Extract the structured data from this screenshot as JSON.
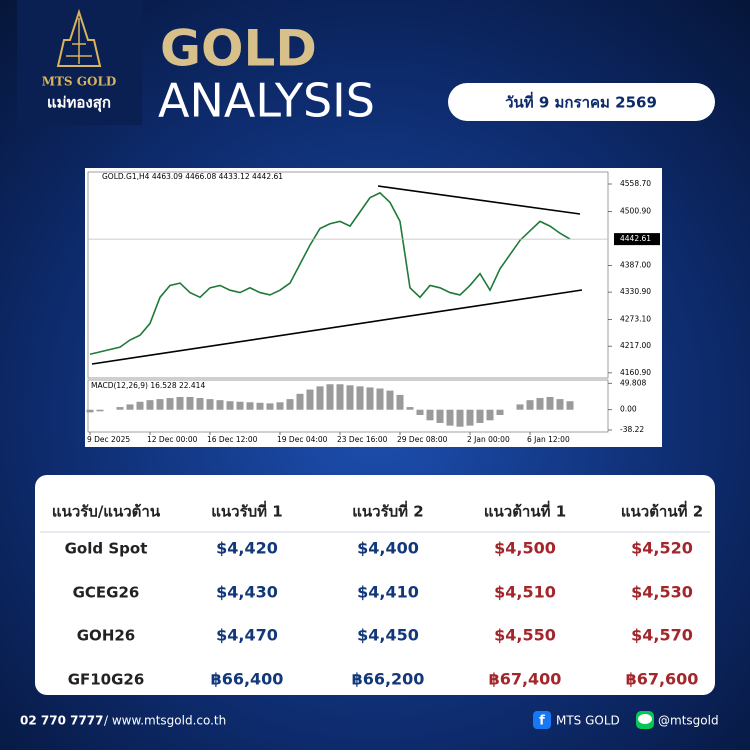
{
  "logo": {
    "brand": "MTS GOLD",
    "thai": "แม่ทองสุก"
  },
  "header": {
    "title_1": "GOLD",
    "title_2": "ANALYSIS",
    "date": "วันที่ 9 มกราคม 2569"
  },
  "chart_data": [
    {
      "type": "line",
      "title": "GOLD.G1,H4  4463.09 4466.08 4433.12 4442.61",
      "color": "#1f7a3a",
      "categories": [
        "9 Dec 2025",
        null,
        null,
        null,
        null,
        null,
        "12 Dec 00:00",
        null,
        null,
        null,
        null,
        null,
        "16 Dec 12:00",
        null,
        null,
        null,
        null,
        null,
        null,
        "19 Dec 04:00",
        null,
        null,
        null,
        null,
        null,
        "23 Dec 16:00",
        null,
        null,
        null,
        null,
        null,
        "29 Dec 08:00",
        null,
        null,
        null,
        null,
        null,
        null,
        "2 Jan 00:00",
        null,
        null,
        null,
        null,
        null,
        "6 Jan 12:00",
        null,
        null,
        null,
        null
      ],
      "values": [
        4200,
        4205,
        4210,
        4215,
        4230,
        4240,
        4265,
        4320,
        4345,
        4350,
        4330,
        4320,
        4340,
        4345,
        4335,
        4330,
        4340,
        4330,
        4325,
        4335,
        4350,
        4390,
        4430,
        4465,
        4475,
        4480,
        4470,
        4500,
        4530,
        4540,
        4520,
        4480,
        4340,
        4320,
        4345,
        4340,
        4330,
        4325,
        4345,
        4370,
        4335,
        4380,
        4410,
        4440,
        4460,
        4480,
        4470,
        4455,
        4442.61
      ],
      "ylim": [
        4150,
        4584
      ],
      "yticks": [
        {
          "value": 4558.7,
          "label": "4558.70"
        },
        {
          "value": 4500.9,
          "label": "4500.90"
        },
        {
          "value": 4387,
          "label": "4387.00"
        },
        {
          "value": 4330.9,
          "label": "4330.90"
        },
        {
          "value": 4273.1,
          "label": "4273.10"
        },
        {
          "value": 4217,
          "label": "4217.00"
        },
        {
          "value": 4160.9,
          "label": "4160.90"
        }
      ],
      "current_price": {
        "value": 4442.61,
        "label": "4442.61"
      }
    },
    {
      "type": "bar",
      "title": "MACD(12,26,9) 16.528 22.414",
      "color": "#9a9a9a",
      "values": [
        -5,
        -3,
        0,
        5,
        10,
        15,
        18,
        20,
        22,
        24,
        24,
        22,
        20,
        18,
        16,
        15,
        14,
        13,
        12,
        14,
        20,
        30,
        38,
        44,
        48,
        48,
        46,
        44,
        42,
        40,
        36,
        28,
        5,
        -10,
        -20,
        -25,
        -30,
        -32,
        -30,
        -25,
        -20,
        -10,
        0,
        10,
        18,
        22,
        24,
        20,
        16
      ],
      "ylim": [
        -42,
        56
      ],
      "yticks": [
        49.808,
        {
          "value": 0,
          "label": "0.00"
        },
        -38.22
      ]
    }
  ],
  "table": {
    "header": [
      "แนวรับ/แนวต้าน",
      "แนวรับที่ 1",
      "แนวรับที่ 2",
      "แนวต้านที่ 1",
      "แนวต้านที่ 2"
    ],
    "rows": [
      [
        "Gold Spot",
        "$4,420",
        "$4,400",
        "$4,500",
        "$4,520"
      ],
      [
        "GCEG26",
        "$4,430",
        "$4,410",
        "$4,510",
        "$4,530"
      ],
      [
        "GOH26",
        "$4,470",
        "$4,450",
        "$4,550",
        "$4,570"
      ],
      [
        "GF10G26",
        "฿66,400",
        "฿66,200",
        "฿67,400",
        "฿67,600"
      ]
    ]
  },
  "footer": {
    "phone": "02 770 7777",
    "website": "/ www.mtsgold.co.th",
    "facebook": "MTS GOLD",
    "line": "@mtsgold"
  }
}
